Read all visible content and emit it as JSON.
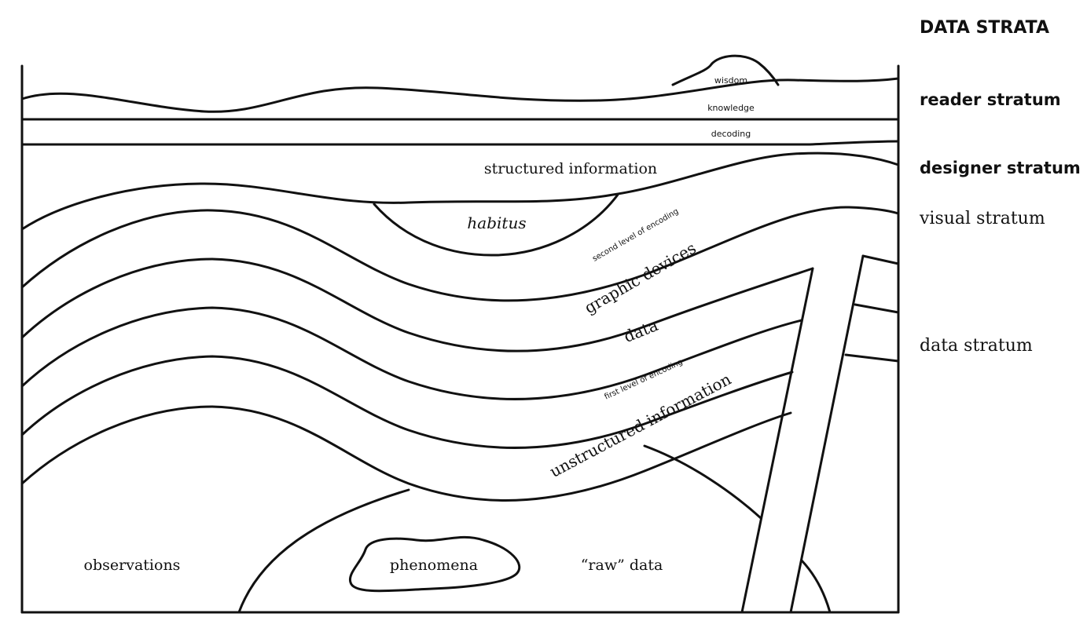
{
  "title": "DATA STRATA",
  "legend": {
    "reader": "reader stratum",
    "designer": "designer stratum",
    "visual": "visual stratum",
    "data": "data stratum"
  },
  "layers": {
    "wisdom": "wisdom",
    "knowledge": "knowledge",
    "decoding": "decoding",
    "structured_information": "structured information",
    "habitus": "habitus",
    "second_encoding": "second level of encoding",
    "graphic_devices": "graphic devices",
    "data": "data",
    "first_encoding": "first level of encoding",
    "unstructured_information": "unstructured information",
    "observations": "observations",
    "phenomena": "phenomena",
    "raw_data": "“raw” data"
  }
}
